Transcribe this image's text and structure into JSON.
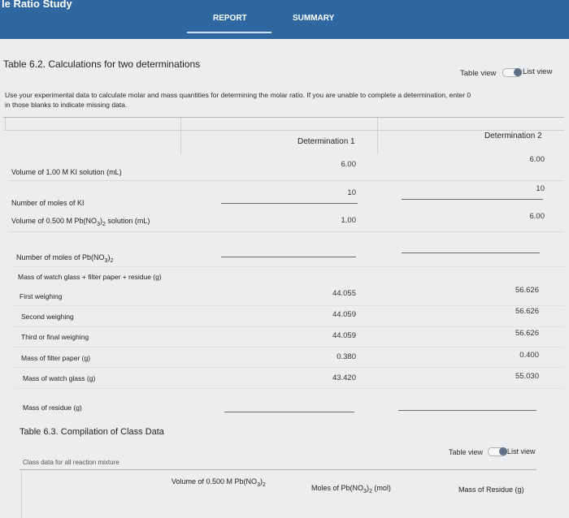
{
  "header": {
    "app_title": "le Ratio Study",
    "tab_report": "REPORT",
    "tab_summary": "SUMMARY"
  },
  "table62": {
    "title": "Table 6.2. Calculations for two determinations",
    "toggle_table": "Table view",
    "toggle_list": "List view",
    "instruction_line1": "Use your experimental data to calculate molar and mass quantities for determining the molar ratio. If you are unable to complete a determination, enter 0",
    "instruction_line2": "in those blanks to indicate missing data.",
    "col1": "Determination 1",
    "col2": "Determination 2",
    "rows": {
      "vol_ki": {
        "label": "Volume of 1.00 M KI solution (mL)",
        "d1": "6.00",
        "d2": "6.00"
      },
      "moles_ki": {
        "label": "Number of moles of KI",
        "d1": "10",
        "d2": "10"
      },
      "vol_pb_prefix": "Volume of 0.500 M Pb(NO",
      "vol_pb_mid": ")",
      "vol_pb_suffix": " solution (mL)",
      "vol_pb": {
        "d1": "1.00",
        "d2": "6.00"
      },
      "moles_pb_prefix": "Number of moles of Pb(NO",
      "moles_pb_mid": ")",
      "mass_group": {
        "label": "Mass of watch glass + filter paper + residue (g)"
      },
      "first": {
        "label": "First weighing",
        "d1": "44.055",
        "d2": "56.626"
      },
      "second": {
        "label": "Second weighing",
        "d1": "44.059",
        "d2": "56.626"
      },
      "third": {
        "label": "Third or final weighing",
        "d1": "44.059",
        "d2": "56.626"
      },
      "filter": {
        "label": "Mass of filter paper (g)",
        "d1": "0.380",
        "d2": "0.400"
      },
      "watch": {
        "label": "Mass of watch glass (g)",
        "d1": "43.420",
        "d2": "55.030"
      },
      "residue": {
        "label": "Mass of residue (g)"
      }
    }
  },
  "table63": {
    "title": "Table 6.3. Compilation of Class Data",
    "toggle_table": "Table view",
    "toggle_list": "List view",
    "caption": "Class data for all reaction mixture",
    "col_vol_prefix": "Volume of 0.500 M Pb(NO",
    "col_vol_mid": ")",
    "col_moles_prefix": "Moles of Pb(NO",
    "col_moles_mid": ")",
    "col_moles_suffix": " (mol)",
    "col_mass": "Mass of Residue (g)"
  }
}
